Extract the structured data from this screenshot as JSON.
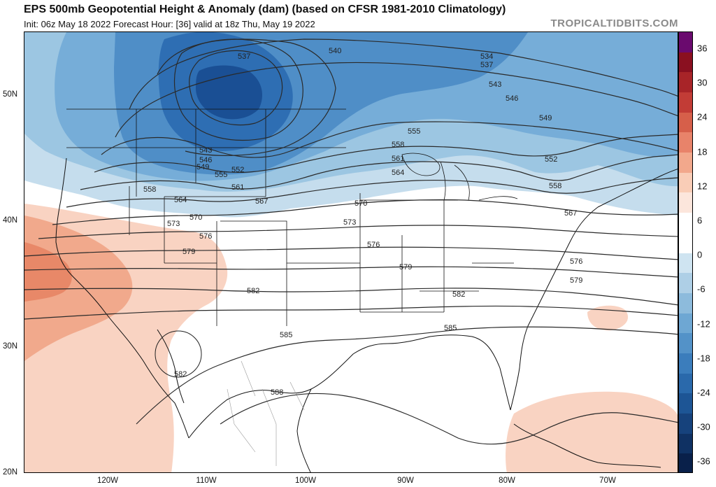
{
  "header": {
    "title": "EPS 500mb Geopotential Height & Anomaly (dam) (based on CFSR 1981-2010 Climatology)",
    "subtitle": "Init: 06z May 18 2022   Forecast Hour: [36]   valid at 18z Thu, May 19 2022",
    "brand": "TROPICALTIDBITS.COM"
  },
  "map": {
    "lat_labels": [
      "50N",
      "40N",
      "30N",
      "20N"
    ],
    "lon_labels": [
      "120W",
      "110W",
      "100W",
      "90W",
      "80W",
      "70W"
    ],
    "contour_labels": [
      "537",
      "540",
      "534",
      "537",
      "543",
      "546",
      "549",
      "543",
      "546",
      "549",
      "552",
      "555",
      "561",
      "558",
      "555",
      "561",
      "564",
      "567",
      "558",
      "564",
      "570",
      "570",
      "573",
      "573",
      "576",
      "576",
      "579",
      "579",
      "576",
      "579",
      "582",
      "582",
      "585",
      "585",
      "582",
      "588",
      "552",
      "558",
      "567"
    ]
  },
  "colorbar": {
    "labels": [
      "36",
      "30",
      "24",
      "18",
      "12",
      "6",
      "0",
      "-6",
      "-12",
      "-18",
      "-24",
      "-30",
      "-36"
    ],
    "colors": [
      "#6a0a6e",
      "#8a1020",
      "#a82428",
      "#c23c36",
      "#d65f4a",
      "#e8836a",
      "#f2a88c",
      "#f9cdb7",
      "#fce6dc",
      "#ffffff",
      "#ffffff",
      "#cfe4f1",
      "#aecfe6",
      "#8dbbdc",
      "#6ea7d3",
      "#5392c8",
      "#3b7dbc",
      "#2a69ab",
      "#1d5595",
      "#16427c",
      "#0f3163",
      "#09204a"
    ]
  }
}
